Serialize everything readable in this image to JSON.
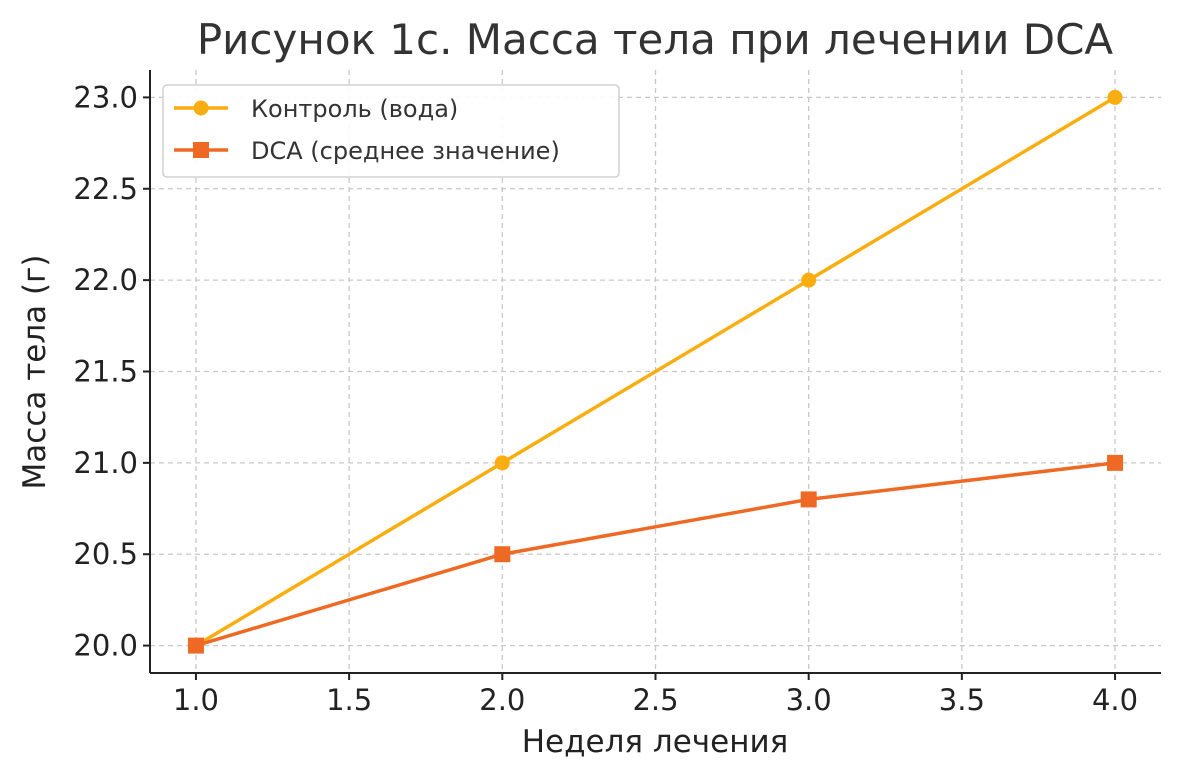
{
  "chart_data": {
    "type": "line",
    "title": "Рисунок 1с. Масса тела при лечении DCA",
    "xlabel": "Неделя лечения",
    "ylabel": "Масса тела (г)",
    "x": [
      1.0,
      2.0,
      3.0,
      4.0
    ],
    "xlim": [
      0.85,
      4.15
    ],
    "ylim": [
      19.85,
      23.15
    ],
    "xticks": [
      1.0,
      1.5,
      2.0,
      2.5,
      3.0,
      3.5,
      4.0
    ],
    "xtick_labels": [
      "1.0",
      "1.5",
      "2.0",
      "2.5",
      "3.0",
      "3.5",
      "4.0"
    ],
    "yticks": [
      20.0,
      20.5,
      21.0,
      21.5,
      22.0,
      22.5,
      23.0
    ],
    "ytick_labels": [
      "20.0",
      "20.5",
      "21.0",
      "21.5",
      "22.0",
      "22.5",
      "23.0"
    ],
    "grid": true,
    "legend_position": "top-left",
    "series": [
      {
        "name": "Контроль (вода)",
        "values": [
          20.0,
          21.0,
          22.0,
          23.0
        ],
        "color": "#f9ad0e",
        "marker": "circle"
      },
      {
        "name": "DCA (среднее значение)",
        "values": [
          20.0,
          20.5,
          20.8,
          21.0
        ],
        "color": "#ee6a24",
        "marker": "square"
      }
    ]
  }
}
